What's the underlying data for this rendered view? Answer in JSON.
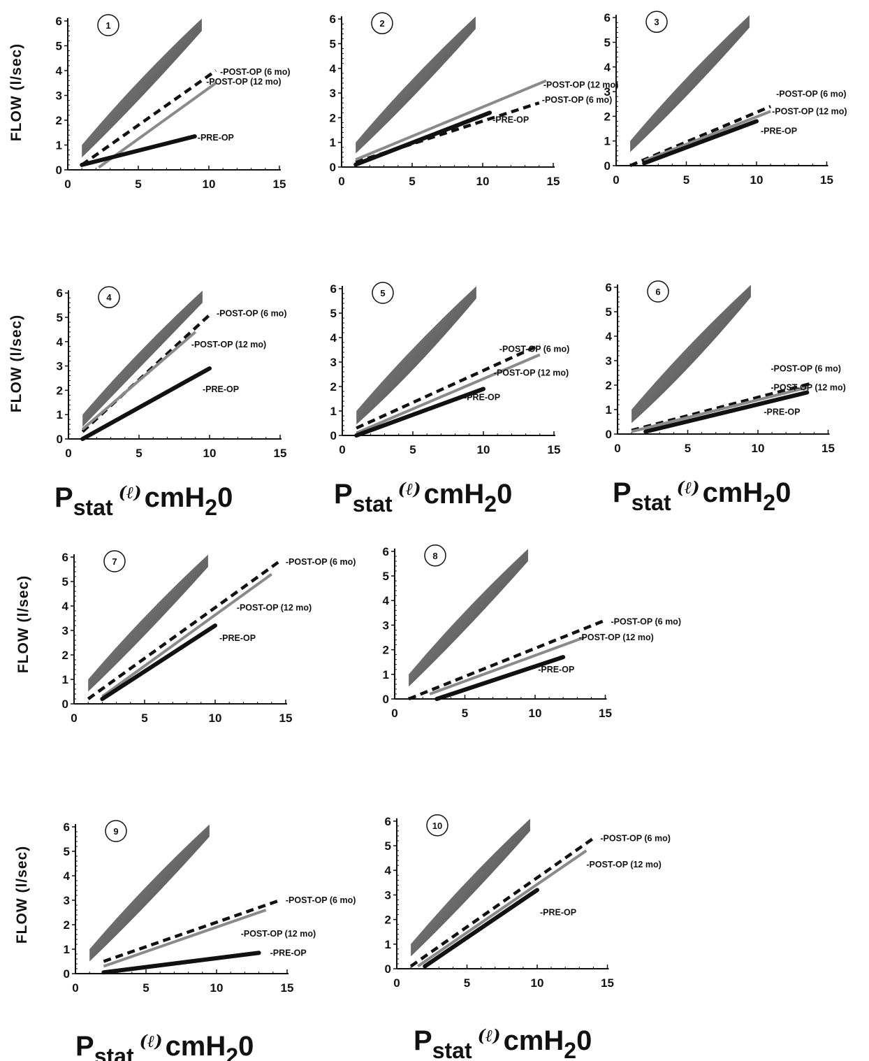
{
  "chart_data": [
    {
      "type": "line",
      "panel": "1",
      "x_ticks": [
        "0",
        "5",
        "10",
        "15"
      ],
      "y_ticks": [
        "0",
        "1",
        "2",
        "3",
        "4",
        "5",
        "6"
      ],
      "xlim": [
        0,
        15
      ],
      "ylim": [
        0,
        6
      ],
      "band": {
        "lower": [
          [
            1,
            0.5
          ],
          [
            5,
            2.7
          ],
          [
            9.5,
            5.6
          ]
        ],
        "upper": [
          [
            1,
            1.0
          ],
          [
            5,
            3.7
          ],
          [
            9.5,
            6.1
          ]
        ]
      },
      "series": [
        {
          "name": "POST-OP (6 mo)",
          "style": "dashed",
          "points": [
            [
              1,
              0.2
            ],
            [
              10.5,
              4.0
            ]
          ]
        },
        {
          "name": "POST-OP (12 mo)",
          "style": "grey",
          "points": [
            [
              2.2,
              0.1
            ],
            [
              10.5,
              3.5
            ]
          ]
        },
        {
          "name": "PRE-OP",
          "style": "solid",
          "points": [
            [
              1,
              0.2
            ],
            [
              9,
              1.35
            ]
          ]
        }
      ]
    },
    {
      "type": "line",
      "panel": "2",
      "x_ticks": [
        "0",
        "5",
        "10",
        "15"
      ],
      "y_ticks": [
        "0",
        "1",
        "2",
        "3",
        "4",
        "5",
        "6"
      ],
      "xlim": [
        0,
        15
      ],
      "ylim": [
        0,
        6
      ],
      "band": {
        "lower": [
          [
            1,
            0.55
          ],
          [
            5,
            2.7
          ],
          [
            9.5,
            5.6
          ]
        ],
        "upper": [
          [
            1,
            1.0
          ],
          [
            5,
            3.7
          ],
          [
            9.5,
            6.1
          ]
        ]
      },
      "series": [
        {
          "name": "POST-OP (6 mo)",
          "style": "dashed",
          "points": [
            [
              1,
              0.2
            ],
            [
              14,
              2.6
            ]
          ]
        },
        {
          "name": "POST-OP (12 mo)",
          "style": "grey",
          "points": [
            [
              1,
              0.3
            ],
            [
              14.5,
              3.5
            ]
          ]
        },
        {
          "name": "PRE-OP",
          "style": "solid",
          "points": [
            [
              1,
              0.1
            ],
            [
              10.5,
              2.2
            ]
          ]
        }
      ]
    },
    {
      "type": "line",
      "panel": "3",
      "x_ticks": [
        "0",
        "5",
        "10",
        "15"
      ],
      "y_ticks": [
        "0",
        "1",
        "2",
        "3",
        "4",
        "5",
        "6"
      ],
      "xlim": [
        0,
        15
      ],
      "ylim": [
        0,
        6
      ],
      "band": {
        "lower": [
          [
            1,
            0.55
          ],
          [
            5,
            2.7
          ],
          [
            9.5,
            5.6
          ]
        ],
        "upper": [
          [
            1,
            1.0
          ],
          [
            5,
            3.7
          ],
          [
            9.5,
            6.1
          ]
        ]
      },
      "series": [
        {
          "name": "POST-OP (6 mo)",
          "style": "dashed",
          "points": [
            [
              1,
              0.0
            ],
            [
              11,
              2.4
            ]
          ]
        },
        {
          "name": "POST-OP (12 mo)",
          "style": "grey",
          "points": [
            [
              2,
              0.2
            ],
            [
              11,
              2.2
            ]
          ]
        },
        {
          "name": "PRE-OP",
          "style": "solid",
          "points": [
            [
              2,
              0.1
            ],
            [
              10,
              1.8
            ]
          ]
        }
      ]
    },
    {
      "type": "line",
      "panel": "4",
      "x_ticks": [
        "0",
        "5",
        "10",
        "15"
      ],
      "y_ticks": [
        "0",
        "1",
        "2",
        "3",
        "4",
        "5",
        "6"
      ],
      "xlim": [
        0,
        15
      ],
      "ylim": [
        0,
        6
      ],
      "band": {
        "lower": [
          [
            1,
            0.5
          ],
          [
            5,
            2.9
          ],
          [
            9.5,
            5.6
          ]
        ],
        "upper": [
          [
            1,
            1.0
          ],
          [
            5,
            3.7
          ],
          [
            9.5,
            6.1
          ]
        ]
      },
      "series": [
        {
          "name": "POST-OP (6 mo)",
          "style": "dashed",
          "points": [
            [
              1,
              0.3
            ],
            [
              10,
              5.1
            ]
          ]
        },
        {
          "name": "POST-OP (12 mo)",
          "style": "grey",
          "points": [
            [
              1,
              0.4
            ],
            [
              9,
              4.4
            ]
          ]
        },
        {
          "name": "PRE-OP",
          "style": "solid",
          "points": [
            [
              1,
              0.0
            ],
            [
              10,
              2.9
            ]
          ]
        }
      ]
    },
    {
      "type": "line",
      "panel": "5",
      "x_ticks": [
        "0",
        "5",
        "10",
        "15"
      ],
      "y_ticks": [
        "0",
        "1",
        "2",
        "3",
        "4",
        "5",
        "6"
      ],
      "xlim": [
        0,
        15
      ],
      "ylim": [
        0,
        6
      ],
      "band": {
        "lower": [
          [
            1,
            0.45
          ],
          [
            5,
            2.5
          ],
          [
            9.5,
            5.6
          ]
        ],
        "upper": [
          [
            1,
            1.0
          ],
          [
            5,
            3.7
          ],
          [
            9.5,
            6.1
          ]
        ]
      },
      "series": [
        {
          "name": "POST-OP (6 mo)",
          "style": "dashed",
          "points": [
            [
              1,
              0.3
            ],
            [
              14,
              3.7
            ]
          ]
        },
        {
          "name": "POST-OP (12 mo)",
          "style": "grey",
          "points": [
            [
              1,
              0.1
            ],
            [
              14,
              3.3
            ]
          ]
        },
        {
          "name": "PRE-OP",
          "style": "solid",
          "points": [
            [
              1,
              0.0
            ],
            [
              10,
              1.9
            ]
          ]
        }
      ]
    },
    {
      "type": "line",
      "panel": "6",
      "x_ticks": [
        "0",
        "5",
        "10",
        "15"
      ],
      "y_ticks": [
        "0",
        "1",
        "2",
        "3",
        "4",
        "5",
        "6"
      ],
      "xlim": [
        0,
        15
      ],
      "ylim": [
        0,
        6
      ],
      "band": {
        "lower": [
          [
            1,
            0.45
          ],
          [
            5,
            2.5
          ],
          [
            9.5,
            5.6
          ]
        ],
        "upper": [
          [
            1,
            1.0
          ],
          [
            5,
            3.7
          ],
          [
            9.5,
            6.1
          ]
        ]
      },
      "series": [
        {
          "name": "POST-OP (6 mo)",
          "style": "dashed",
          "points": [
            [
              1,
              0.15
            ],
            [
              14,
              2.1
            ]
          ]
        },
        {
          "name": "POST-OP (12 mo)",
          "style": "grey",
          "points": [
            [
              1,
              0.1
            ],
            [
              13.5,
              1.9
            ]
          ]
        },
        {
          "name": "PRE-OP",
          "style": "solid",
          "points": [
            [
              2,
              0.1
            ],
            [
              13.5,
              1.7
            ]
          ]
        }
      ]
    },
    {
      "type": "line",
      "panel": "7",
      "x_ticks": [
        "0",
        "5",
        "10",
        "15"
      ],
      "y_ticks": [
        "0",
        "1",
        "2",
        "3",
        "4",
        "5",
        "6"
      ],
      "xlim": [
        0,
        15
      ],
      "ylim": [
        0,
        6
      ],
      "band": {
        "lower": [
          [
            1,
            0.5
          ],
          [
            5,
            2.7
          ],
          [
            9.5,
            5.6
          ]
        ],
        "upper": [
          [
            1,
            1.0
          ],
          [
            5,
            3.7
          ],
          [
            9.5,
            6.1
          ]
        ]
      },
      "series": [
        {
          "name": "POST-OP (6 mo)",
          "style": "dashed",
          "points": [
            [
              1,
              0.2
            ],
            [
              14.5,
              5.8
            ]
          ]
        },
        {
          "name": "POST-OP (12 mo)",
          "style": "grey",
          "points": [
            [
              2,
              0.3
            ],
            [
              14,
              5.3
            ]
          ]
        },
        {
          "name": "PRE-OP",
          "style": "solid",
          "points": [
            [
              2,
              0.2
            ],
            [
              10,
              3.2
            ]
          ]
        }
      ]
    },
    {
      "type": "line",
      "panel": "8",
      "x_ticks": [
        "0",
        "5",
        "10",
        "15"
      ],
      "y_ticks": [
        "0",
        "1",
        "2",
        "3",
        "4",
        "5",
        "6"
      ],
      "xlim": [
        0,
        15
      ],
      "ylim": [
        0,
        6
      ],
      "band": {
        "lower": [
          [
            1,
            0.5
          ],
          [
            5,
            2.7
          ],
          [
            9.5,
            5.6
          ]
        ],
        "upper": [
          [
            1,
            1.0
          ],
          [
            5,
            3.7
          ],
          [
            9.5,
            6.1
          ]
        ]
      },
      "series": [
        {
          "name": "POST-OP (6 mo)",
          "style": "dashed",
          "points": [
            [
              1,
              0.0
            ],
            [
              15,
              3.2
            ]
          ]
        },
        {
          "name": "POST-OP (12 mo)",
          "style": "grey",
          "points": [
            [
              2.5,
              0.2
            ],
            [
              13.5,
              2.5
            ]
          ]
        },
        {
          "name": "PRE-OP",
          "style": "solid",
          "points": [
            [
              3,
              0.0
            ],
            [
              12,
              1.7
            ]
          ]
        }
      ]
    },
    {
      "type": "line",
      "panel": "9",
      "x_ticks": [
        "0",
        "5",
        "10",
        "15"
      ],
      "y_ticks": [
        "0",
        "1",
        "2",
        "3",
        "4",
        "5",
        "6"
      ],
      "xlim": [
        0,
        15
      ],
      "ylim": [
        0,
        6
      ],
      "band": {
        "lower": [
          [
            1,
            0.5
          ],
          [
            5,
            2.7
          ],
          [
            9.5,
            5.6
          ]
        ],
        "upper": [
          [
            1,
            1.0
          ],
          [
            5,
            3.7
          ],
          [
            9.5,
            6.1
          ]
        ]
      },
      "series": [
        {
          "name": "POST-OP (6 mo)",
          "style": "dashed",
          "points": [
            [
              2,
              0.5
            ],
            [
              14.5,
              3.0
            ]
          ]
        },
        {
          "name": "POST-OP (12 mo)",
          "style": "grey",
          "points": [
            [
              2,
              0.3
            ],
            [
              13.5,
              2.6
            ]
          ]
        },
        {
          "name": "PRE-OP",
          "style": "solid",
          "points": [
            [
              2,
              0.05
            ],
            [
              13,
              0.85
            ]
          ]
        }
      ]
    },
    {
      "type": "line",
      "panel": "10",
      "x_ticks": [
        "0",
        "5",
        "10",
        "15"
      ],
      "y_ticks": [
        "0",
        "1",
        "2",
        "3",
        "4",
        "5",
        "6"
      ],
      "xlim": [
        0,
        15
      ],
      "ylim": [
        0,
        6
      ],
      "band": {
        "lower": [
          [
            1,
            0.5
          ],
          [
            5,
            2.7
          ],
          [
            9.5,
            5.6
          ]
        ],
        "upper": [
          [
            1,
            1.0
          ],
          [
            5,
            3.7
          ],
          [
            9.5,
            6.1
          ]
        ]
      },
      "series": [
        {
          "name": "POST-OP (6 mo)",
          "style": "dashed",
          "points": [
            [
              1,
              0.1
            ],
            [
              14,
              5.3
            ]
          ]
        },
        {
          "name": "POST-OP (12 mo)",
          "style": "grey",
          "points": [
            [
              1.5,
              0.1
            ],
            [
              13.5,
              4.8
            ]
          ]
        },
        {
          "name": "PRE-OP",
          "style": "solid",
          "points": [
            [
              2,
              0.1
            ],
            [
              10,
              3.2
            ]
          ]
        }
      ]
    }
  ],
  "y_axis_label": "FLOW (l/sec)",
  "x_axis_label": {
    "main": "P",
    "sub": "stat",
    "paren": "(ℓ)",
    "unit": "cmH",
    "unit_sub": "2",
    "tail": "0"
  },
  "colors": {
    "band_dark": "#555555",
    "band_light": "#bdbdbd",
    "line": "#111111",
    "grey_line": "#8a8a8a"
  }
}
